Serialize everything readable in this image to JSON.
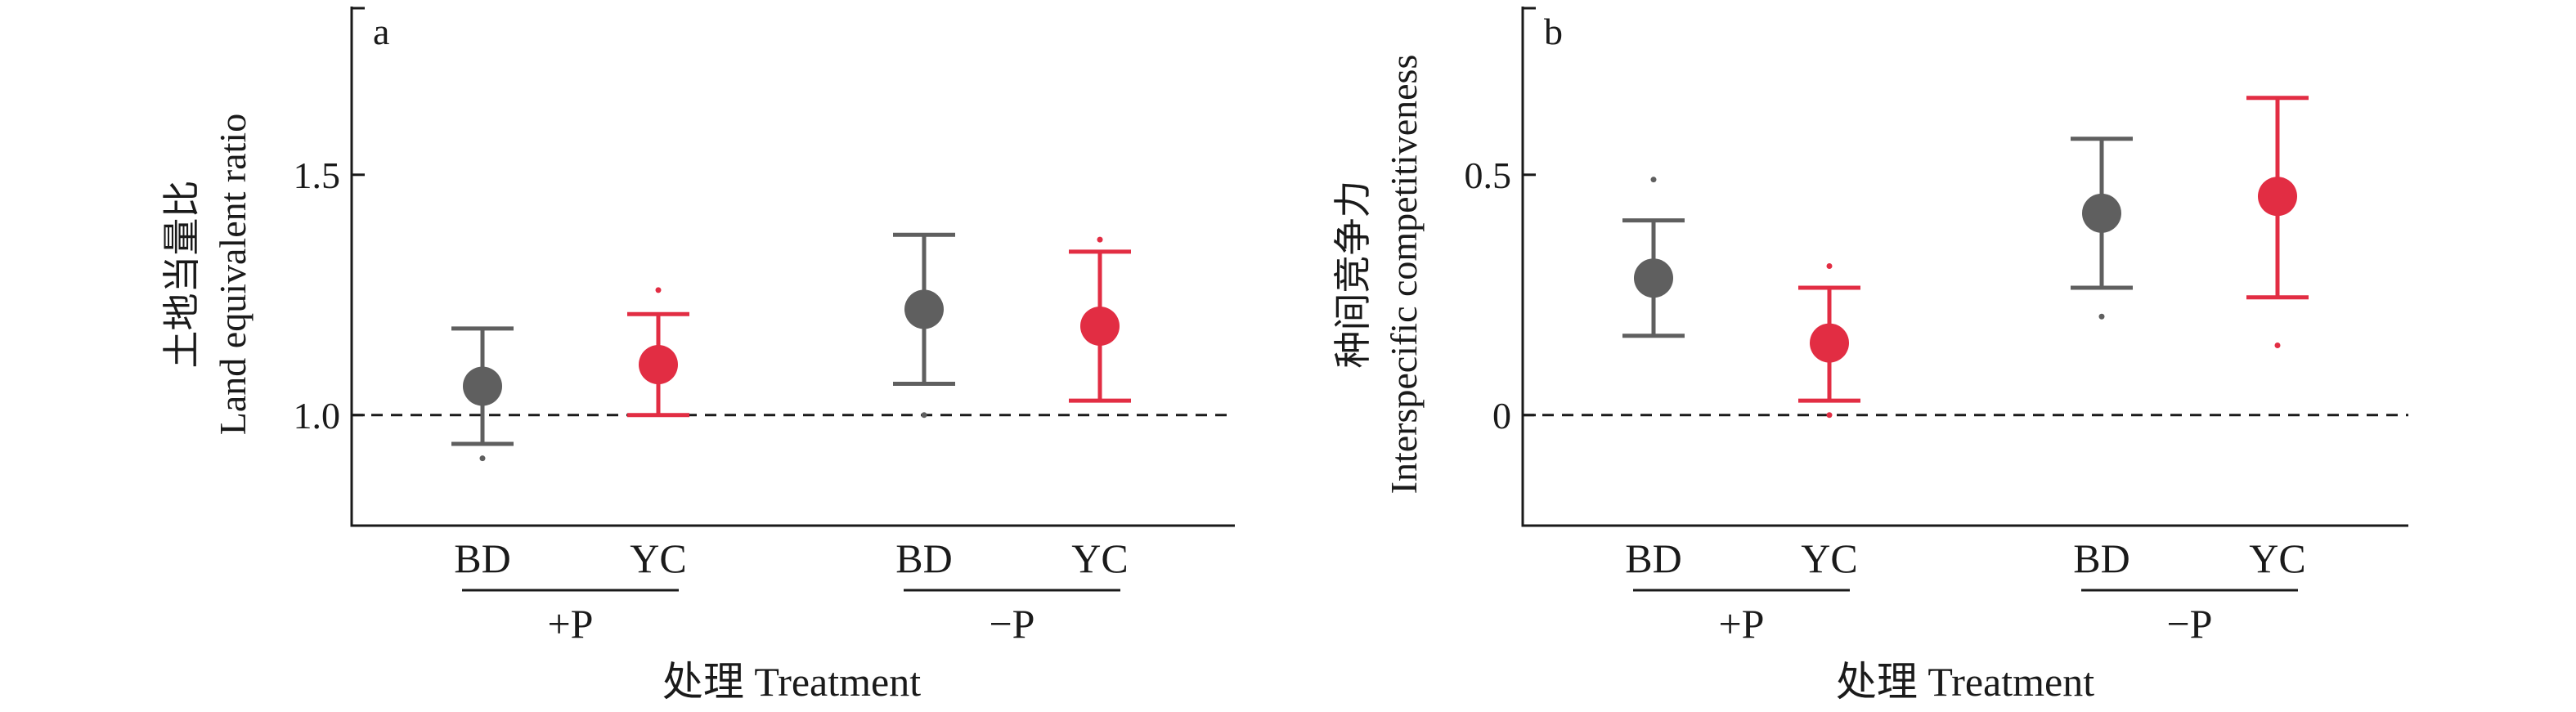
{
  "chart_data": [
    {
      "type": "scatter",
      "panel_label": "a",
      "ylabel_cn": "土地当量比",
      "ylabel_en": "Land equivalent ratio",
      "xlabel": "处理 Treatment",
      "ylim": [
        0.77,
        1.85
      ],
      "yticks": [
        1.0,
        1.5
      ],
      "ytick_labels": [
        "1.0",
        "1.5"
      ],
      "reference_line": 1.0,
      "groups": [
        {
          "label": "+P",
          "categories": [
            "BD",
            "YC"
          ]
        },
        {
          "label": "−P",
          "categories": [
            "BD",
            "YC"
          ]
        }
      ],
      "points": [
        {
          "group": "+P",
          "category": "BD",
          "mean": 1.06,
          "lower": 0.94,
          "upper": 1.18,
          "outliers": [
            0.91
          ],
          "color": "#5f5f5f"
        },
        {
          "group": "+P",
          "category": "YC",
          "mean": 1.105,
          "lower": 1.0,
          "upper": 1.21,
          "outliers": [
            1.26
          ],
          "color": "#e22d43"
        },
        {
          "group": "−P",
          "category": "BD",
          "mean": 1.22,
          "lower": 1.065,
          "upper": 1.375,
          "outliers": [
            1.0
          ],
          "color": "#5f5f5f"
        },
        {
          "group": "−P",
          "category": "YC",
          "mean": 1.185,
          "lower": 1.03,
          "upper": 1.34,
          "outliers": [
            1.365
          ],
          "color": "#e22d43"
        }
      ]
    },
    {
      "type": "scatter",
      "panel_label": "b",
      "ylabel_cn": "种间竞争力",
      "ylabel_en": "Interspecific competitiveness",
      "xlabel": "处理 Treatment",
      "ylim": [
        -0.23,
        0.85
      ],
      "yticks": [
        0,
        0.5
      ],
      "ytick_labels": [
        "0",
        "0.5"
      ],
      "reference_line": 0,
      "groups": [
        {
          "label": "+P",
          "categories": [
            "BD",
            "YC"
          ]
        },
        {
          "label": "−P",
          "categories": [
            "BD",
            "YC"
          ]
        }
      ],
      "points": [
        {
          "group": "+P",
          "category": "BD",
          "mean": 0.285,
          "lower": 0.165,
          "upper": 0.405,
          "outliers": [
            0.49
          ],
          "color": "#5f5f5f"
        },
        {
          "group": "+P",
          "category": "YC",
          "mean": 0.15,
          "lower": 0.03,
          "upper": 0.265,
          "outliers": [
            0.31,
            0.0
          ],
          "color": "#e22d43"
        },
        {
          "group": "−P",
          "category": "BD",
          "mean": 0.42,
          "lower": 0.265,
          "upper": 0.575,
          "outliers": [
            0.205
          ],
          "color": "#5f5f5f"
        },
        {
          "group": "−P",
          "category": "YC",
          "mean": 0.455,
          "lower": 0.245,
          "upper": 0.66,
          "outliers": [
            0.145
          ],
          "color": "#e22d43"
        }
      ]
    }
  ]
}
